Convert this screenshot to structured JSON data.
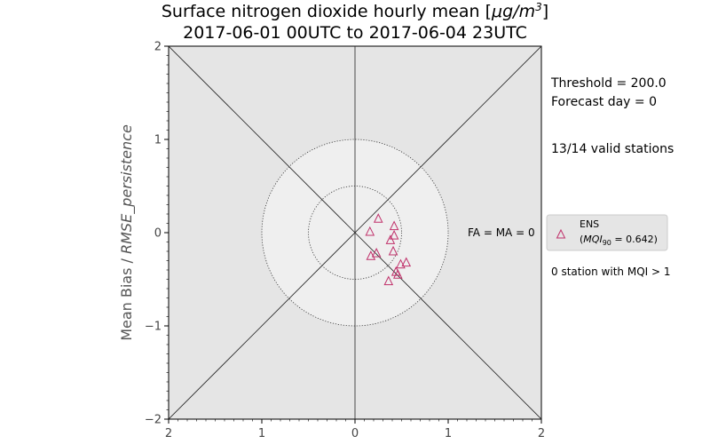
{
  "chart_data": {
    "type": "scatter",
    "title_line1": "Surface nitrogen dioxide hourly mean [",
    "title_unit_base": "μg/m",
    "title_unit_exp": "3",
    "title_line1_end": "]",
    "title_line2": "2017-06-01 00UTC to 2017-06-04 23UTC",
    "xlabel": "",
    "ylabel": "Mean Bias / RMSE_persistence",
    "xlim": [
      -2,
      2
    ],
    "ylim": [
      -2,
      2
    ],
    "x_tick_labels": [
      "2",
      "1",
      "0",
      "1",
      "2"
    ],
    "y_tick_labels": [
      "2",
      "1",
      "0",
      "−1",
      "−2"
    ],
    "series": [
      {
        "name": "ENS",
        "marker": "triangle",
        "color": "#c0306a",
        "x": [
          0.25,
          0.16,
          0.42,
          0.42,
          0.38,
          0.41,
          0.17,
          0.23,
          0.55,
          0.49,
          0.44,
          0.46,
          0.36
        ],
        "y": [
          0.15,
          0.01,
          0.07,
          -0.03,
          -0.08,
          -0.2,
          -0.25,
          -0.22,
          -0.32,
          -0.34,
          -0.42,
          -0.45,
          -0.52
        ]
      }
    ],
    "legend": {
      "placement": "right",
      "entry_name": "ENS",
      "entry_mqi_prefix": "(",
      "entry_mqi_symbol": "MQI",
      "entry_mqi_sub": "90",
      "entry_mqi_value": " = 0.642)"
    },
    "annotations": {
      "threshold": "Threshold = 200.0",
      "forecast_day": "Forecast day = 0",
      "valid_stations": "13/14 valid stations",
      "fa_ma": "FA = MA = 0",
      "mqi_stations": "0 station with MQI > 1"
    },
    "circles": [
      0.5,
      1.0
    ],
    "colors": {
      "outer_bg": "#e5e5e5",
      "inner_circle": "#efefef",
      "axis_lines": "#222222",
      "marker": "#c0306a"
    }
  }
}
